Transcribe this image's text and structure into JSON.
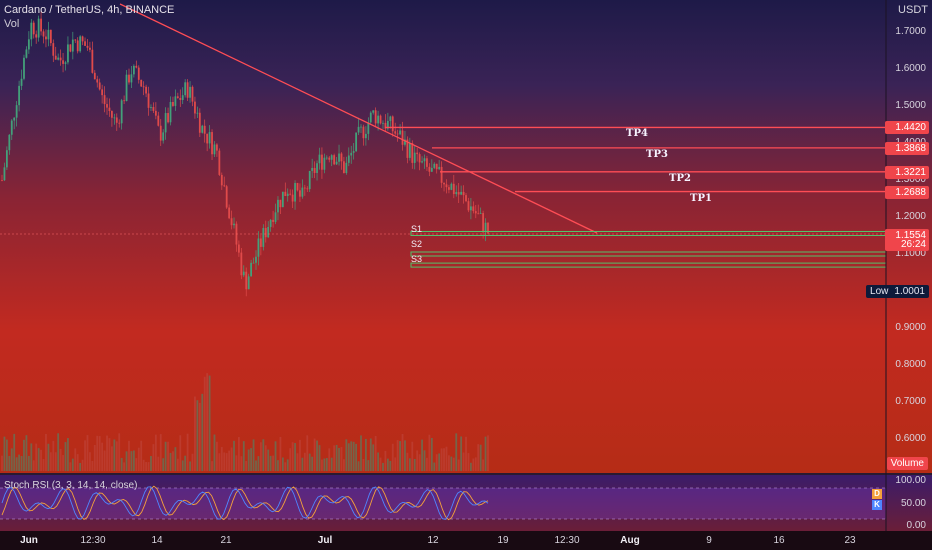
{
  "header": {
    "symbol_title": "Cardano / TetherUS, 4h, BINANCE",
    "volume_label": "Vol",
    "currency": "USDT"
  },
  "price_axis": {
    "ticks": [
      "1.7000",
      "1.6000",
      "1.5000",
      "1.4000",
      "1.3000",
      "1.2000",
      "1.1000",
      "0.9000",
      "0.8000",
      "0.7000",
      "0.6000"
    ],
    "current_price": "1.1554",
    "countdown": "26:24",
    "low_label": "Low",
    "low_value": "1.0001",
    "volume_badge": "Volume"
  },
  "levels": {
    "tp": [
      {
        "label": "TP4",
        "price": "1.4420"
      },
      {
        "label": "TP3",
        "price": "1.3868"
      },
      {
        "label": "TP2",
        "price": "1.3221"
      },
      {
        "label": "TP1",
        "price": "1.2688"
      }
    ],
    "s": [
      {
        "label": "S1",
        "price": 1.1554
      },
      {
        "label": "S2",
        "price": 1.1
      },
      {
        "label": "S3",
        "price": 1.07
      }
    ]
  },
  "indicator": {
    "title": "Stoch RSI (3, 3, 14, 14, close)",
    "ticks": [
      "100.00",
      "50.00",
      "0.00"
    ],
    "d_badge": "D",
    "k_badge": "K"
  },
  "time_axis": {
    "labels": [
      "Jun",
      "12:30",
      "14",
      "21",
      "Jul",
      "12",
      "19",
      "12:30",
      "Aug",
      "9",
      "16",
      "23"
    ]
  },
  "colors": {
    "line_red": "#ff4d55",
    "support_green": "#53c26a",
    "candle_up": "#43a07a",
    "candle_down": "#e04a4a",
    "stoch_k": "#4f86ff",
    "stoch_d": "#f4a13b",
    "badge_red": "#f0454b"
  },
  "chart_data": {
    "type": "candlestick",
    "instrument": "Cardano / TetherUS",
    "timeframe": "4h",
    "exchange": "BINANCE",
    "price_range": [
      0.5,
      1.8
    ],
    "close_approx": [
      1.3,
      1.52,
      1.72,
      1.7,
      1.62,
      1.68,
      1.66,
      1.52,
      1.45,
      1.6,
      1.55,
      1.42,
      1.5,
      1.55,
      1.44,
      1.38,
      1.2,
      1.02,
      1.12,
      1.22,
      1.28,
      1.25,
      1.34,
      1.38,
      1.33,
      1.42,
      1.48,
      1.45,
      1.41,
      1.35,
      1.32,
      1.3,
      1.26,
      1.22,
      1.16
    ],
    "support_levels": [
      1.1554,
      1.1,
      1.07
    ],
    "take_profit_levels": [
      1.442,
      1.3868,
      1.3221,
      1.2688
    ],
    "session_low": 1.0001,
    "stoch_rsi_range": [
      0,
      100
    ]
  }
}
